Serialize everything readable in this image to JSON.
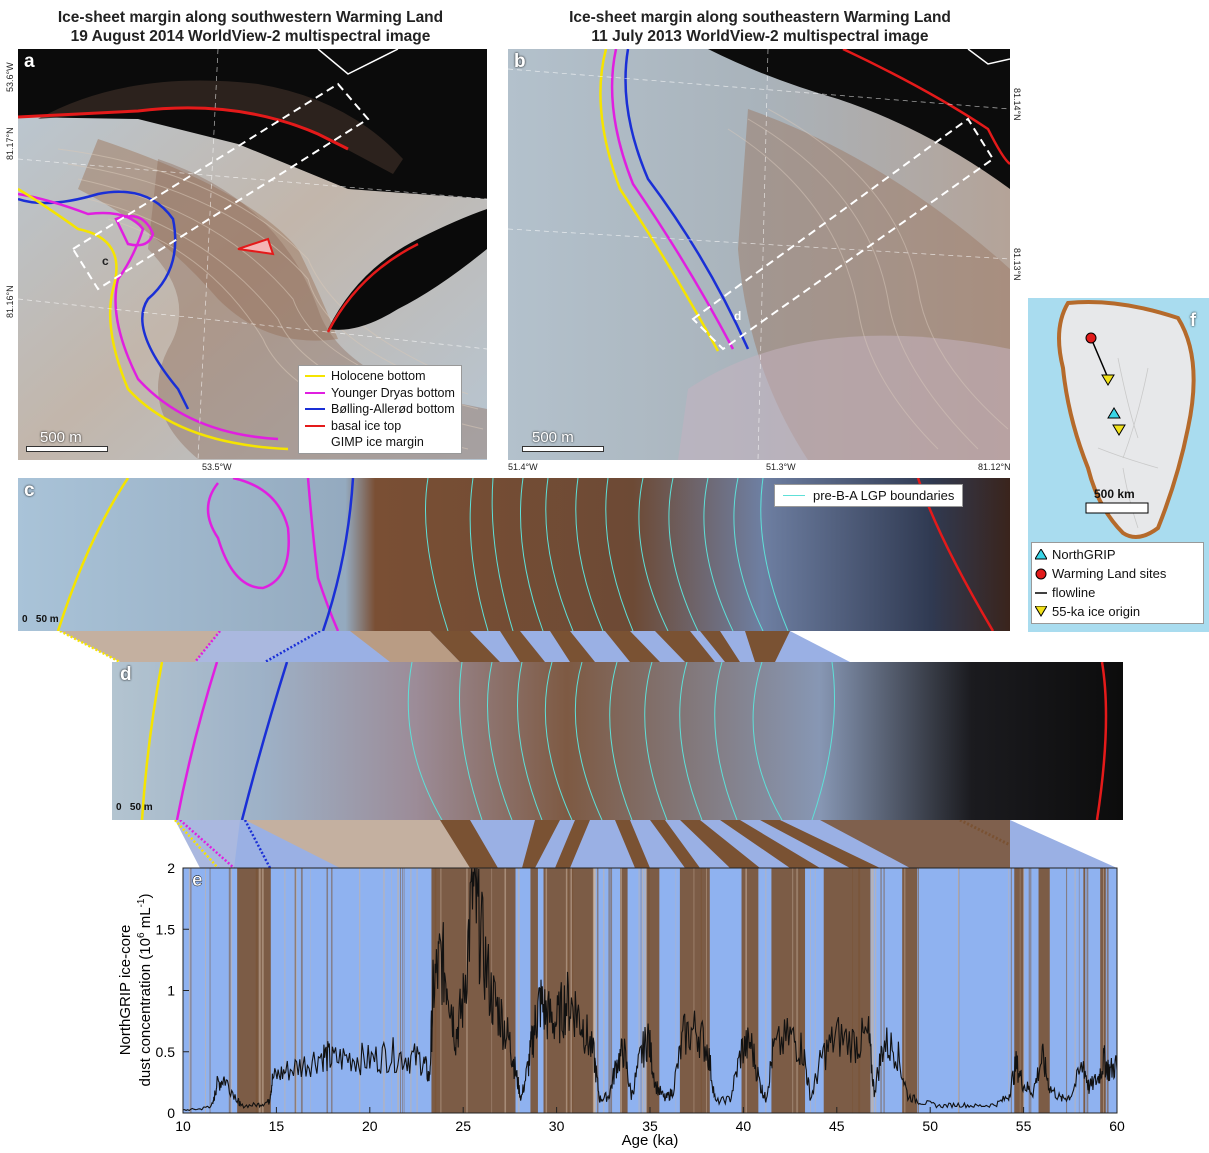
{
  "titles": {
    "left_line1": "Ice-sheet margin along southwestern Warming Land",
    "left_line2": "19 August 2014 WorldView-2 multispectral image",
    "right_line1": "Ice-sheet margin along southeastern Warming Land",
    "right_line2": "11 July 2013 WorldView-2 multispectral image"
  },
  "panel_a": {
    "label": "a",
    "inset_label": "c",
    "coord_top_left": "53.6°W",
    "coord_left_1": "81.17°N",
    "coord_left_2": "81.16°N",
    "coord_bottom": "53.5°W",
    "scale": "500 m",
    "legend": [
      {
        "label": "Holocene bottom",
        "color": "#f5e400"
      },
      {
        "label": "Younger Dryas bottom",
        "color": "#e01fe0"
      },
      {
        "label": "Bølling-Allerød bottom",
        "color": "#1a2fd6"
      },
      {
        "label": "basal ice top",
        "color": "#e41a1a"
      },
      {
        "label": "GIMP ice margin",
        "color": "#ffffff"
      }
    ]
  },
  "panel_b": {
    "label": "b",
    "inset_label": "d",
    "coord_right_1": "81.14°N",
    "coord_right_2": "81.13°N",
    "coord_bottom_left": "51.4°W",
    "coord_bottom_mid": "51.3°W",
    "coord_bottom_right": "81.12°N",
    "scale": "500 m"
  },
  "panel_c": {
    "label": "c",
    "scale": "50 m",
    "scale_zero": "0",
    "legend": "pre-B-A LGP boundaries",
    "legend_color": "#5ee0d8"
  },
  "panel_d": {
    "label": "d",
    "scale": "50 m",
    "scale_zero": "0"
  },
  "panel_f": {
    "label": "f",
    "scale": "500 km",
    "legend": [
      {
        "label": "NorthGRIP",
        "icon": "cyan-triangle-icon",
        "color": "#39d6e8"
      },
      {
        "label": "Warming Land sites",
        "icon": "red-circle-icon",
        "color": "#e11b1b"
      },
      {
        "label": "flowline",
        "icon": "black-line-icon",
        "color": "#000000"
      },
      {
        "label": "55-ka ice origin",
        "icon": "yellow-down-triangle-icon",
        "color": "#f2e21a"
      }
    ]
  },
  "chart_data": {
    "type": "line",
    "panel_label": "e",
    "xlabel": "Age (ka)",
    "ylabel_line1": "NorthGRIP ice-core",
    "ylabel_line2": "dust concentration (10",
    "ylabel_sup": "6",
    "ylabel_unit": " mL",
    "ylabel_sup2": "-1",
    "ylabel_close": ")",
    "xlim": [
      10,
      60
    ],
    "ylim": [
      0,
      2
    ],
    "xticks": [
      "10",
      "15",
      "20",
      "25",
      "30",
      "35",
      "40",
      "45",
      "50",
      "55",
      "60"
    ],
    "yticks": [
      "0",
      "0.5",
      "1",
      "1.5",
      "2"
    ],
    "background_colors": {
      "interstadial": "#8fb2f0",
      "stadial": "#7a5233"
    },
    "stadial_intervals": [
      [
        12.9,
        14.7
      ],
      [
        23.3,
        27.8
      ],
      [
        28.6,
        29.0
      ],
      [
        29.3,
        32.0
      ],
      [
        33.4,
        33.8
      ],
      [
        34.8,
        35.5
      ],
      [
        36.6,
        38.2
      ],
      [
        39.9,
        40.8
      ],
      [
        41.5,
        43.3
      ],
      [
        44.3,
        46.8
      ],
      [
        48.5,
        49.3
      ],
      [
        54.5,
        55.0
      ],
      [
        55.8,
        56.4
      ],
      [
        58.2,
        58.3
      ],
      [
        59.1,
        59.4
      ]
    ],
    "dust_series": [
      [
        10.0,
        0.02
      ],
      [
        11.0,
        0.03
      ],
      [
        11.6,
        0.06
      ],
      [
        11.8,
        0.2
      ],
      [
        12.2,
        0.25
      ],
      [
        12.9,
        0.1
      ],
      [
        13.1,
        0.05
      ],
      [
        14.0,
        0.06
      ],
      [
        14.6,
        0.08
      ],
      [
        14.8,
        0.25
      ],
      [
        15.5,
        0.3
      ],
      [
        16.5,
        0.35
      ],
      [
        17.5,
        0.42
      ],
      [
        18.0,
        0.38
      ],
      [
        19.0,
        0.4
      ],
      [
        20.0,
        0.38
      ],
      [
        21.0,
        0.42
      ],
      [
        22.0,
        0.4
      ],
      [
        22.8,
        0.38
      ],
      [
        23.2,
        0.25
      ],
      [
        23.4,
        0.9
      ],
      [
        23.8,
        1.1
      ],
      [
        24.2,
        0.95
      ],
      [
        24.6,
        0.55
      ],
      [
        25.0,
        0.8
      ],
      [
        25.5,
        1.6
      ],
      [
        25.9,
        1.3
      ],
      [
        26.5,
        0.85
      ],
      [
        27.0,
        0.7
      ],
      [
        27.5,
        0.5
      ],
      [
        27.8,
        0.3
      ],
      [
        28.1,
        0.1
      ],
      [
        28.5,
        0.35
      ],
      [
        28.8,
        0.6
      ],
      [
        29.1,
        0.8
      ],
      [
        29.5,
        0.7
      ],
      [
        30.0,
        0.65
      ],
      [
        30.5,
        0.8
      ],
      [
        31.0,
        0.75
      ],
      [
        31.5,
        0.6
      ],
      [
        32.0,
        0.4
      ],
      [
        32.3,
        0.1
      ],
      [
        32.8,
        0.12
      ],
      [
        33.2,
        0.35
      ],
      [
        33.6,
        0.45
      ],
      [
        34.0,
        0.12
      ],
      [
        34.5,
        0.4
      ],
      [
        34.9,
        0.55
      ],
      [
        35.3,
        0.2
      ],
      [
        35.8,
        0.1
      ],
      [
        36.2,
        0.15
      ],
      [
        36.8,
        0.55
      ],
      [
        37.5,
        0.6
      ],
      [
        38.1,
        0.45
      ],
      [
        38.5,
        0.08
      ],
      [
        39.3,
        0.1
      ],
      [
        39.9,
        0.45
      ],
      [
        40.4,
        0.5
      ],
      [
        40.9,
        0.2
      ],
      [
        41.2,
        0.1
      ],
      [
        41.6,
        0.45
      ],
      [
        42.5,
        0.55
      ],
      [
        43.2,
        0.45
      ],
      [
        43.6,
        0.1
      ],
      [
        44.2,
        0.4
      ],
      [
        45.0,
        0.55
      ],
      [
        46.0,
        0.5
      ],
      [
        46.7,
        0.55
      ],
      [
        47.0,
        0.15
      ],
      [
        47.5,
        0.5
      ],
      [
        48.2,
        0.45
      ],
      [
        48.8,
        0.12
      ],
      [
        49.5,
        0.08
      ],
      [
        50.5,
        0.05
      ],
      [
        51.5,
        0.06
      ],
      [
        52.5,
        0.05
      ],
      [
        53.5,
        0.06
      ],
      [
        54.2,
        0.12
      ],
      [
        54.6,
        0.35
      ],
      [
        55.0,
        0.2
      ],
      [
        55.5,
        0.15
      ],
      [
        56.0,
        0.4
      ],
      [
        56.4,
        0.18
      ],
      [
        57.0,
        0.1
      ],
      [
        57.5,
        0.12
      ],
      [
        58.2,
        0.35
      ],
      [
        58.5,
        0.18
      ],
      [
        59.0,
        0.25
      ],
      [
        59.3,
        0.38
      ],
      [
        59.6,
        0.3
      ],
      [
        60.0,
        0.35
      ]
    ]
  }
}
